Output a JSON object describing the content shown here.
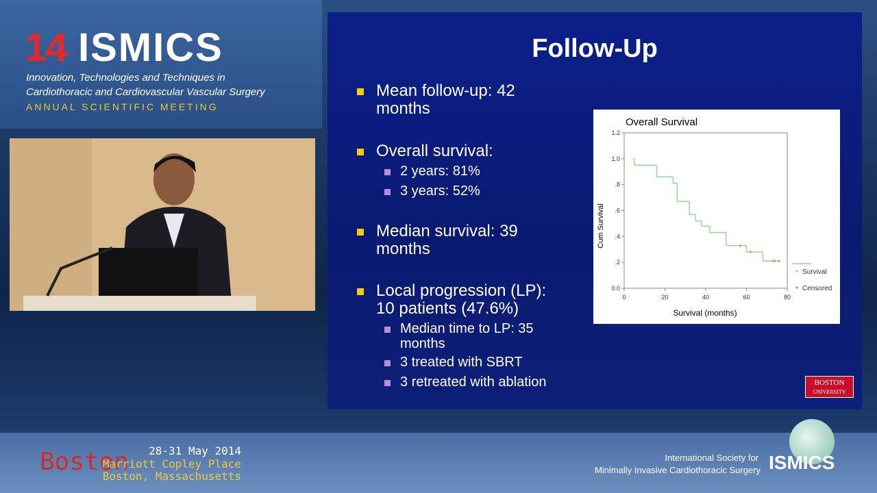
{
  "header": {
    "logo_number": "14",
    "logo_text": "ISMICS",
    "line1": "Innovation, Technologies and Techniques in",
    "line2": "Cardiothoracic and Cardiovascular Vascular Surgery",
    "line3": "ANNUAL SCIENTIFIC MEETING"
  },
  "slide": {
    "title": "Follow-Up",
    "bullets": [
      {
        "lines": [
          "Mean follow-up: 42",
          "months"
        ]
      },
      {
        "lines": [
          "Overall survival:"
        ],
        "sub": [
          {
            "lines": [
              "2 years: 81%"
            ]
          },
          {
            "lines": [
              "3 years: 52%"
            ]
          }
        ]
      },
      {
        "lines": [
          "Median survival: 39",
          "months"
        ]
      },
      {
        "lines": [
          "Local progression (LP):",
          "10 patients (47.6%)"
        ],
        "sub": [
          {
            "lines": [
              "Median time to LP: 35",
              "months"
            ]
          },
          {
            "lines": [
              "3 treated with SBRT"
            ]
          },
          {
            "lines": [
              "3 retreated with ablation"
            ]
          }
        ]
      }
    ],
    "logo": [
      "BOSTON",
      "UNIVERSITY"
    ]
  },
  "chart_data": {
    "type": "line",
    "title": "Overall Survival",
    "xlabel": "Survival (months)",
    "ylabel": "Cum Survival",
    "xlim": [
      0,
      80
    ],
    "xticks": [
      0,
      20,
      40,
      60,
      80
    ],
    "ylim": [
      0,
      1.2
    ],
    "yticks": [
      {
        "value": 0,
        "label": "0.0"
      },
      {
        "value": 0.2,
        "label": ".2"
      },
      {
        "value": 0.4,
        "label": ".4"
      },
      {
        "value": 0.6,
        "label": ".6"
      },
      {
        "value": 0.8,
        "label": ".8"
      },
      {
        "value": 1,
        "label": "1.0"
      },
      {
        "value": 1.2,
        "label": "1.2"
      }
    ],
    "series": [
      {
        "name": "Survival",
        "color": "#8fdc8f",
        "step": true,
        "x": [
          4,
          5,
          16,
          24,
          26,
          32,
          35,
          38,
          42,
          50,
          60,
          68
        ],
        "values": [
          1.0,
          0.95,
          0.86,
          0.81,
          0.67,
          0.57,
          0.52,
          0.48,
          0.43,
          0.33,
          0.28,
          0.21
        ]
      },
      {
        "name": "Censored",
        "color": "#e07070",
        "marker": "+",
        "x": [
          57,
          62,
          73,
          74,
          76
        ],
        "values": [
          0.33,
          0.28,
          0.21,
          0.21,
          0.21
        ]
      }
    ]
  },
  "footer": {
    "city": "Boston",
    "dates": "28-31 May 2014",
    "venue": "Marriott Copley Place",
    "place": "Boston, Massachusetts",
    "society1": "International Society for",
    "society2": "Minimally Invasive Cardiothoracic Surgery",
    "logo": "ISMICS"
  }
}
